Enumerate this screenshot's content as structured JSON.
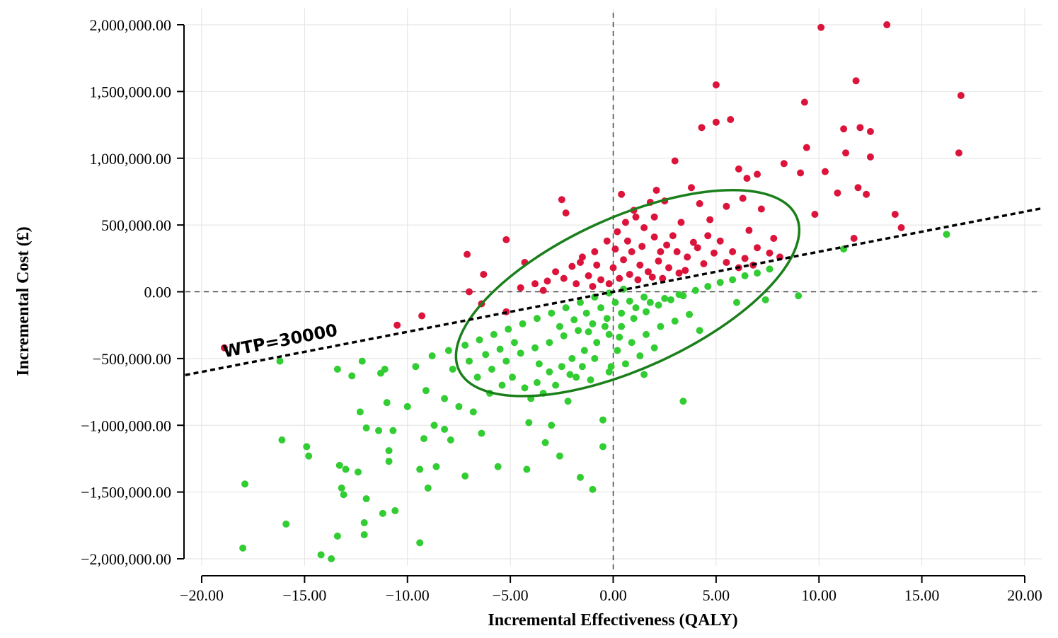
{
  "chart_data": {
    "type": "scatter",
    "title": "",
    "xlabel": "Incremental Effectiveness (QALY)",
    "ylabel": "Incremental Cost (£)",
    "xlim": [
      -20,
      20
    ],
    "ylim": [
      -2000000,
      2000000
    ],
    "x_ticks": [
      -20,
      -15,
      -10,
      -5,
      0,
      5,
      10,
      15,
      20
    ],
    "x_tick_labels": [
      "−20.00",
      "−15.00",
      "−10.00",
      "−5.00",
      "0.00",
      "5.00",
      "10.00",
      "15.00",
      "20.00"
    ],
    "y_ticks": [
      2000000,
      1500000,
      1000000,
      500000,
      0,
      -500000,
      -1000000,
      -1500000,
      -2000000
    ],
    "y_tick_labels": [
      "2,000,000.00",
      "1,500,000.00",
      "1,000,000.00",
      "500,000.00",
      "0.00",
      "−500,000.00",
      "−1,000,000.00",
      "−1,500,000.00",
      "−2,000,000.00"
    ],
    "grid": true,
    "reference_lines": {
      "x": 0,
      "y": 0,
      "style": "dashed"
    },
    "wtp": {
      "label": "WTP=30000",
      "slope": 30000,
      "style": "dotted",
      "color": "#000000"
    },
    "confidence_ellipse": {
      "center": [
        0.7,
        -10000
      ],
      "semi_axis_major_x": [
        8.2,
        575000
      ],
      "semi_axis_minor_x": [
        -3.6,
        110000
      ],
      "color": "#1a7f1a"
    },
    "colors": {
      "above_wtp": "#dc143c",
      "below_wtp": "#32cd32",
      "ellipse": "#1a7f1a"
    },
    "series": [
      {
        "color": "#dc143c",
        "points": [
          [
            10.1,
            1980000
          ],
          [
            13.3,
            2000000
          ],
          [
            16.9,
            1470000
          ],
          [
            11.8,
            1580000
          ],
          [
            5.0,
            1550000
          ],
          [
            9.3,
            1420000
          ],
          [
            5.7,
            1290000
          ],
          [
            5.0,
            1270000
          ],
          [
            4.3,
            1230000
          ],
          [
            11.2,
            1220000
          ],
          [
            12.0,
            1230000
          ],
          [
            12.5,
            1200000
          ],
          [
            16.8,
            1040000
          ],
          [
            11.3,
            1040000
          ],
          [
            12.5,
            1010000
          ],
          [
            9.4,
            1080000
          ],
          [
            8.3,
            960000
          ],
          [
            10.3,
            900000
          ],
          [
            9.1,
            890000
          ],
          [
            3.0,
            980000
          ],
          [
            7.0,
            880000
          ],
          [
            6.1,
            920000
          ],
          [
            6.5,
            850000
          ],
          [
            12.3,
            730000
          ],
          [
            11.9,
            780000
          ],
          [
            10.9,
            740000
          ],
          [
            13.7,
            580000
          ],
          [
            14.0,
            480000
          ],
          [
            11.7,
            400000
          ],
          [
            9.8,
            580000
          ],
          [
            7.2,
            620000
          ],
          [
            6.3,
            700000
          ],
          [
            5.5,
            640000
          ],
          [
            4.2,
            660000
          ],
          [
            3.8,
            780000
          ],
          [
            2.1,
            760000
          ],
          [
            2.5,
            680000
          ],
          [
            0.4,
            730000
          ],
          [
            1.8,
            670000
          ],
          [
            -2.5,
            690000
          ],
          [
            -2.3,
            590000
          ],
          [
            -5.2,
            390000
          ],
          [
            -7.1,
            280000
          ],
          [
            -4.3,
            220000
          ],
          [
            -6.3,
            130000
          ],
          [
            -7.0,
            0
          ],
          [
            -6.4,
            -90000
          ],
          [
            -5.2,
            -150000
          ],
          [
            -9.3,
            -180000
          ],
          [
            -10.5,
            -250000
          ],
          [
            -18.9,
            -420000
          ],
          [
            -4.5,
            30000
          ],
          [
            -3.8,
            60000
          ],
          [
            -3.2,
            80000
          ],
          [
            -2.8,
            150000
          ],
          [
            -2.0,
            190000
          ],
          [
            -1.5,
            260000
          ],
          [
            -0.9,
            300000
          ],
          [
            -0.3,
            380000
          ],
          [
            0.2,
            450000
          ],
          [
            0.6,
            520000
          ],
          [
            1.1,
            560000
          ],
          [
            1.5,
            480000
          ],
          [
            2.0,
            410000
          ],
          [
            2.6,
            350000
          ],
          [
            3.1,
            300000
          ],
          [
            3.6,
            260000
          ],
          [
            4.1,
            330000
          ],
          [
            4.6,
            420000
          ],
          [
            5.2,
            380000
          ],
          [
            5.8,
            300000
          ],
          [
            6.4,
            250000
          ],
          [
            7.0,
            330000
          ],
          [
            7.6,
            290000
          ],
          [
            8.1,
            260000
          ],
          [
            -1.2,
            120000
          ],
          [
            -0.6,
            90000
          ],
          [
            0.0,
            180000
          ],
          [
            0.5,
            240000
          ],
          [
            0.9,
            300000
          ],
          [
            1.3,
            200000
          ],
          [
            1.7,
            150000
          ],
          [
            2.2,
            230000
          ],
          [
            2.7,
            180000
          ],
          [
            3.2,
            140000
          ],
          [
            -1.8,
            60000
          ],
          [
            -1.0,
            40000
          ],
          [
            -0.2,
            60000
          ],
          [
            0.3,
            100000
          ],
          [
            0.8,
            130000
          ],
          [
            1.2,
            90000
          ],
          [
            1.9,
            110000
          ],
          [
            2.4,
            100000
          ],
          [
            3.5,
            160000
          ],
          [
            4.4,
            210000
          ],
          [
            -2.4,
            100000
          ],
          [
            -3.4,
            10000
          ],
          [
            -1.6,
            220000
          ],
          [
            -0.8,
            200000
          ],
          [
            0.1,
            320000
          ],
          [
            0.7,
            380000
          ],
          [
            1.4,
            340000
          ],
          [
            2.3,
            300000
          ],
          [
            2.9,
            420000
          ],
          [
            3.9,
            370000
          ],
          [
            4.9,
            290000
          ],
          [
            5.5,
            220000
          ],
          [
            6.1,
            180000
          ],
          [
            6.8,
            200000
          ],
          [
            3.3,
            520000
          ],
          [
            2.0,
            560000
          ],
          [
            1.0,
            610000
          ],
          [
            4.7,
            540000
          ],
          [
            6.6,
            460000
          ],
          [
            7.8,
            400000
          ]
        ]
      },
      {
        "color": "#32cd32",
        "points": [
          [
            16.2,
            430000
          ],
          [
            11.2,
            320000
          ],
          [
            9.0,
            -30000
          ],
          [
            7.4,
            -60000
          ],
          [
            6.0,
            -80000
          ],
          [
            4.2,
            -290000
          ],
          [
            3.4,
            -820000
          ],
          [
            1.5,
            -620000
          ],
          [
            -0.2,
            -600000
          ],
          [
            -0.5,
            -1160000
          ],
          [
            -0.5,
            -960000
          ],
          [
            -1.0,
            -1480000
          ],
          [
            -1.6,
            -1390000
          ],
          [
            -2.6,
            -1230000
          ],
          [
            -3.3,
            -1130000
          ],
          [
            -4.2,
            -1330000
          ],
          [
            -5.6,
            -1310000
          ],
          [
            -7.2,
            -1380000
          ],
          [
            -8.6,
            -1310000
          ],
          [
            -9.0,
            -1470000
          ],
          [
            -9.4,
            -1330000
          ],
          [
            -9.4,
            -1880000
          ],
          [
            -10.6,
            -1640000
          ],
          [
            -11.2,
            -1660000
          ],
          [
            -12.1,
            -1730000
          ],
          [
            -12.1,
            -1820000
          ],
          [
            -12.0,
            -1550000
          ],
          [
            -13.3,
            -1300000
          ],
          [
            -13.2,
            -1470000
          ],
          [
            -13.1,
            -1520000
          ],
          [
            -12.4,
            -1350000
          ],
          [
            -13.0,
            -1330000
          ],
          [
            -13.7,
            -2000000
          ],
          [
            -14.2,
            -1970000
          ],
          [
            -13.4,
            -1830000
          ],
          [
            -14.9,
            -1160000
          ],
          [
            -14.8,
            -1230000
          ],
          [
            -15.9,
            -1740000
          ],
          [
            -16.1,
            -1110000
          ],
          [
            -17.9,
            -1440000
          ],
          [
            -18.0,
            -1920000
          ],
          [
            -16.2,
            -520000
          ],
          [
            -13.4,
            -580000
          ],
          [
            -12.3,
            -900000
          ],
          [
            -12.2,
            -520000
          ],
          [
            -12.7,
            -630000
          ],
          [
            -11.3,
            -610000
          ],
          [
            -11.1,
            -580000
          ],
          [
            -11.0,
            -830000
          ],
          [
            -10.9,
            -1190000
          ],
          [
            -10.9,
            -1270000
          ],
          [
            -11.4,
            -1040000
          ],
          [
            -10.7,
            -1040000
          ],
          [
            -12.0,
            -1020000
          ],
          [
            -9.2,
            -1100000
          ],
          [
            -8.7,
            -1000000
          ],
          [
            -8.2,
            -1030000
          ],
          [
            -7.9,
            -1110000
          ],
          [
            -6.4,
            -1060000
          ],
          [
            -4.1,
            -980000
          ],
          [
            -3.0,
            -1000000
          ],
          [
            -10.0,
            -860000
          ],
          [
            -9.1,
            -740000
          ],
          [
            -8.2,
            -800000
          ],
          [
            -7.5,
            -860000
          ],
          [
            -6.8,
            -900000
          ],
          [
            -6.0,
            -760000
          ],
          [
            -5.4,
            -700000
          ],
          [
            -4.9,
            -640000
          ],
          [
            -4.3,
            -720000
          ],
          [
            -3.7,
            -680000
          ],
          [
            -3.1,
            -600000
          ],
          [
            -2.5,
            -560000
          ],
          [
            -2.0,
            -500000
          ],
          [
            -1.4,
            -440000
          ],
          [
            -0.8,
            -380000
          ],
          [
            -0.2,
            -320000
          ],
          [
            0.4,
            -260000
          ],
          [
            1.0,
            -200000
          ],
          [
            1.6,
            -150000
          ],
          [
            2.2,
            -100000
          ],
          [
            2.8,
            -60000
          ],
          [
            3.4,
            -30000
          ],
          [
            4.0,
            10000
          ],
          [
            4.6,
            40000
          ],
          [
            5.2,
            70000
          ],
          [
            5.8,
            90000
          ],
          [
            6.4,
            120000
          ],
          [
            7.0,
            140000
          ],
          [
            7.6,
            170000
          ],
          [
            -9.6,
            -560000
          ],
          [
            -8.8,
            -480000
          ],
          [
            -8.0,
            -440000
          ],
          [
            -7.2,
            -400000
          ],
          [
            -6.5,
            -360000
          ],
          [
            -5.8,
            -320000
          ],
          [
            -5.1,
            -280000
          ],
          [
            -4.4,
            -240000
          ],
          [
            -3.7,
            -200000
          ],
          [
            -3.0,
            -160000
          ],
          [
            -2.3,
            -120000
          ],
          [
            -1.6,
            -80000
          ],
          [
            -0.9,
            -40000
          ],
          [
            -0.2,
            -10000
          ],
          [
            0.5,
            20000
          ],
          [
            -6.6,
            -640000
          ],
          [
            -5.9,
            -580000
          ],
          [
            -5.2,
            -520000
          ],
          [
            -4.5,
            -460000
          ],
          [
            -3.8,
            -420000
          ],
          [
            -3.1,
            -380000
          ],
          [
            -2.4,
            -330000
          ],
          [
            -1.7,
            -290000
          ],
          [
            -1.0,
            -240000
          ],
          [
            -0.3,
            -200000
          ],
          [
            0.4,
            -160000
          ],
          [
            1.1,
            -120000
          ],
          [
            1.8,
            -80000
          ],
          [
            2.5,
            -50000
          ],
          [
            3.2,
            -20000
          ],
          [
            -2.8,
            -700000
          ],
          [
            -2.1,
            -620000
          ],
          [
            -1.5,
            -560000
          ],
          [
            -0.9,
            -500000
          ],
          [
            0.2,
            -440000
          ],
          [
            0.9,
            -380000
          ],
          [
            1.6,
            -320000
          ],
          [
            2.3,
            -260000
          ],
          [
            3.0,
            -220000
          ],
          [
            3.7,
            -170000
          ],
          [
            -4.0,
            -800000
          ],
          [
            -3.4,
            -760000
          ],
          [
            -2.2,
            -820000
          ],
          [
            -1.1,
            -660000
          ],
          [
            0.6,
            -540000
          ],
          [
            -7.8,
            -580000
          ],
          [
            -7.0,
            -520000
          ],
          [
            -6.2,
            -470000
          ],
          [
            -5.5,
            -430000
          ],
          [
            -4.8,
            -380000
          ],
          [
            -1.3,
            -160000
          ],
          [
            -0.6,
            -120000
          ],
          [
            0.1,
            -80000
          ],
          [
            0.8,
            -70000
          ],
          [
            1.5,
            -40000
          ],
          [
            -2.6,
            -260000
          ],
          [
            -1.9,
            -210000
          ],
          [
            -1.2,
            -300000
          ],
          [
            -0.4,
            -260000
          ],
          [
            0.3,
            -340000
          ],
          [
            2.0,
            -420000
          ],
          [
            1.3,
            -480000
          ],
          [
            -0.1,
            -560000
          ],
          [
            -1.8,
            -640000
          ],
          [
            -3.6,
            -540000
          ]
        ]
      }
    ]
  }
}
